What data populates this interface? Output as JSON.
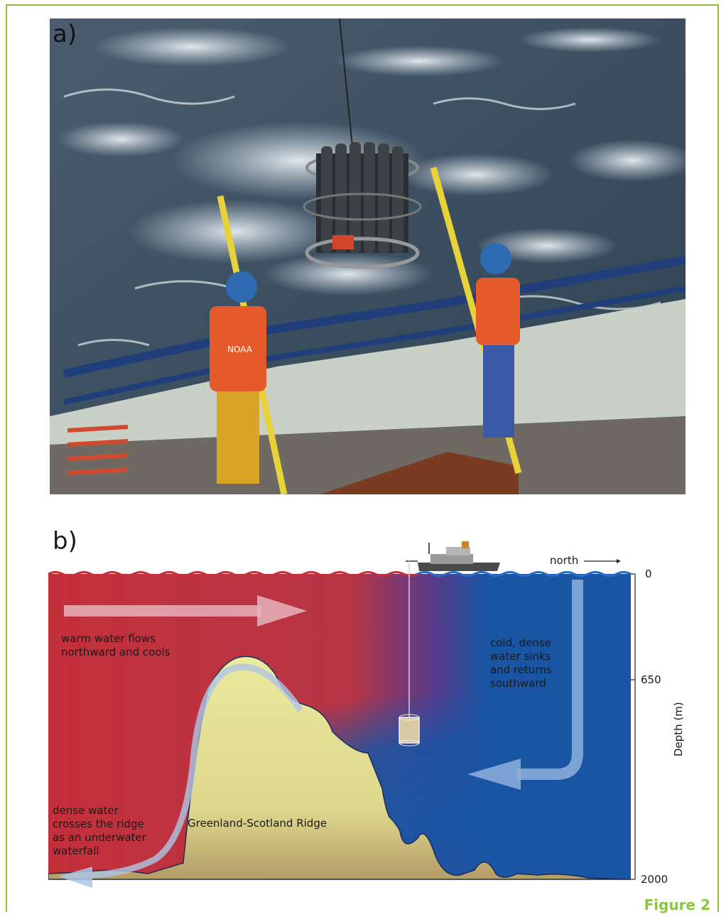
{
  "panel_a": {
    "label": "a)",
    "vest_text": "NOAA"
  },
  "panel_b": {
    "label": "b)",
    "direction_label": "north",
    "depth_axis": {
      "label": "Depth (m)",
      "ticks": [
        "0",
        "650",
        "2000"
      ]
    },
    "annotations": {
      "warm": [
        "warm water flows",
        "northward and cools"
      ],
      "cold": [
        "cold, dense",
        "water sinks",
        "and returns",
        "southward"
      ],
      "dense": [
        "dense water",
        "crosses the ridge",
        "as an underwater",
        "waterfall"
      ],
      "ridge": "Greenland-Scotland Ridge"
    },
    "colors": {
      "warm": "#c4303a",
      "cold": "#1a55a3",
      "ridge": "#e6e59a",
      "ridge_base": "#b8a06a"
    }
  },
  "caption": "Figure 2"
}
